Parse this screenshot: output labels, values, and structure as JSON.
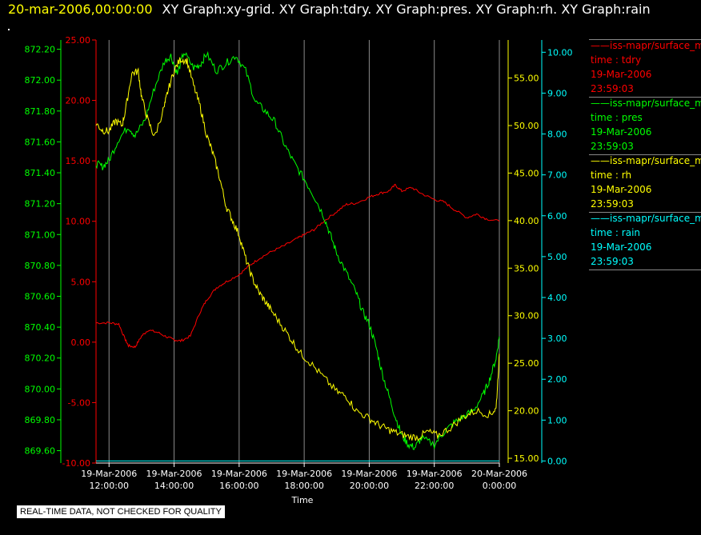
{
  "header": {
    "date": "20-mar-2006,00:00:00",
    "titles": "XY Graph:xy-grid.  XY Graph:tdry.  XY Graph:pres.  XY Graph:rh.  XY Graph:rain"
  },
  "footer": {
    "text": "REAL-TIME DATA, NOT CHECKED FOR QUALITY"
  },
  "legend": [
    {
      "line1": "——iss-mapr/surface_m",
      "line2": "time : tdry",
      "line3": "19-Mar-2006",
      "line4": "23:59:03",
      "color": "#ff0000"
    },
    {
      "line1": "——iss-mapr/surface_m",
      "line2": "time : pres",
      "line3": "19-Mar-2006",
      "line4": "23:59:03",
      "color": "#00ff00"
    },
    {
      "line1": "——iss-mapr/surface_m",
      "line2": "time : rh",
      "line3": "19-Mar-2006",
      "line4": "23:59:03",
      "color": "#ffff00"
    },
    {
      "line1": "——iss-mapr/surface_m",
      "line2": "time : rain",
      "line3": "19-Mar-2006",
      "line4": "23:59:03",
      "color": "#00ffff"
    }
  ],
  "chart_data": {
    "type": "line",
    "xlabel": "Time",
    "x_range_hours": [
      11.6,
      24.0
    ],
    "x_ticks": [
      {
        "h": 12,
        "d": "19-Mar-2006",
        "t": "12:00:00"
      },
      {
        "h": 14,
        "d": "19-Mar-2006",
        "t": "14:00:00"
      },
      {
        "h": 16,
        "d": "19-Mar-2006",
        "t": "16:00:00"
      },
      {
        "h": 18,
        "d": "19-Mar-2006",
        "t": "18:00:00"
      },
      {
        "h": 20,
        "d": "19-Mar-2006",
        "t": "20:00:00"
      },
      {
        "h": 22,
        "d": "19-Mar-2006",
        "t": "22:00:00"
      },
      {
        "h": 24,
        "d": "20-Mar-2006",
        "t": "0:00:00"
      }
    ],
    "grid": "vertical",
    "axes": {
      "pres": {
        "color": "#00ff00",
        "side": "left-outer",
        "ylim": [
          869.52,
          872.26
        ],
        "ticks": [
          "869.60",
          "869.80",
          "870.00",
          "870.20",
          "870.40",
          "870.60",
          "870.80",
          "871.00",
          "871.20",
          "871.40",
          "871.60",
          "871.80",
          "872.00",
          "872.20"
        ]
      },
      "tdry": {
        "color": "#ff0000",
        "side": "left-inner",
        "ylim": [
          -10,
          25
        ],
        "ticks": [
          "-10.00",
          "-5.00",
          "0.00",
          "5.00",
          "10.00",
          "15.00",
          "20.00",
          "25.00"
        ]
      },
      "rh": {
        "color": "#ffff00",
        "side": "right-inner",
        "ylim": [
          14.5,
          59
        ],
        "ticks": [
          "15.00",
          "20.00",
          "25.00",
          "30.00",
          "35.00",
          "40.00",
          "45.00",
          "50.00",
          "55.00"
        ]
      },
      "rain": {
        "color": "#00ffff",
        "side": "right-outer",
        "ylim": [
          -0.05,
          10.3
        ],
        "ticks": [
          "0.00",
          "1.00",
          "2.00",
          "3.00",
          "4.00",
          "5.00",
          "6.00",
          "7.00",
          "8.00",
          "9.00",
          "10.00"
        ]
      }
    },
    "series": [
      {
        "name": "tdry",
        "axis": "tdry",
        "color": "#ff0000",
        "x": [
          11.6,
          12.0,
          12.3,
          12.5,
          12.6,
          12.8,
          13.0,
          13.2,
          13.5,
          13.8,
          14.0,
          14.2,
          14.5,
          14.8,
          15.0,
          15.3,
          15.6,
          16.0,
          16.3,
          16.6,
          17.0,
          17.4,
          17.8,
          18.0,
          18.3,
          18.6,
          19.0,
          19.3,
          19.6,
          20.0,
          20.3,
          20.6,
          20.8,
          21.0,
          21.3,
          21.6,
          22.0,
          22.3,
          22.6,
          23.0,
          23.3,
          23.6,
          24.0
        ],
        "y": [
          1.6,
          1.6,
          1.5,
          0.2,
          -0.3,
          -0.4,
          0.5,
          1.0,
          0.8,
          0.4,
          0.2,
          0.1,
          0.5,
          2.5,
          3.5,
          4.5,
          5.0,
          5.6,
          6.3,
          6.9,
          7.5,
          8.0,
          8.6,
          8.9,
          9.3,
          10.0,
          10.8,
          11.4,
          11.5,
          12.0,
          12.3,
          12.5,
          13.0,
          12.5,
          12.8,
          12.3,
          11.8,
          11.6,
          11.0,
          10.3,
          10.6,
          10.2,
          10.0
        ]
      },
      {
        "name": "pres",
        "axis": "pres",
        "color": "#00ff00",
        "x": [
          11.6,
          11.8,
          12.0,
          12.3,
          12.6,
          12.8,
          13.1,
          13.4,
          13.7,
          13.9,
          14.1,
          14.3,
          14.6,
          14.8,
          15.0,
          15.3,
          15.6,
          15.9,
          16.2,
          16.5,
          16.8,
          17.1,
          17.4,
          17.7,
          18.0,
          18.3,
          18.6,
          18.8,
          19.0,
          19.3,
          19.6,
          19.8,
          20.0,
          20.2,
          20.4,
          20.6,
          20.8,
          21.0,
          21.2,
          21.4,
          21.6,
          22.0,
          22.3,
          22.6,
          22.9,
          23.2,
          23.5,
          23.7,
          23.9,
          24.0
        ],
        "y": [
          871.46,
          871.44,
          871.48,
          871.62,
          871.7,
          871.64,
          871.74,
          871.95,
          872.12,
          872.16,
          872.04,
          872.18,
          872.08,
          872.1,
          872.17,
          872.06,
          872.11,
          872.16,
          872.06,
          871.86,
          871.8,
          871.73,
          871.58,
          871.46,
          871.36,
          871.25,
          871.12,
          871.0,
          870.88,
          870.75,
          870.62,
          870.5,
          870.42,
          870.28,
          870.1,
          869.96,
          869.82,
          869.7,
          869.64,
          869.62,
          869.68,
          869.64,
          869.72,
          869.78,
          869.82,
          869.86,
          869.96,
          870.06,
          870.2,
          870.34
        ]
      },
      {
        "name": "rh",
        "axis": "rh",
        "color": "#ffff00",
        "x": [
          11.6,
          11.8,
          12.0,
          12.2,
          12.4,
          12.5,
          12.7,
          12.9,
          13.0,
          13.2,
          13.4,
          13.7,
          13.8,
          14.0,
          14.2,
          14.4,
          14.6,
          14.8,
          15.0,
          15.2,
          15.4,
          15.6,
          15.8,
          16.0,
          16.2,
          16.4,
          16.6,
          16.8,
          17.0,
          17.3,
          17.6,
          17.9,
          18.2,
          18.6,
          19.0,
          19.3,
          19.6,
          20.0,
          20.3,
          20.6,
          20.9,
          21.2,
          21.5,
          21.8,
          22.1,
          22.5,
          22.9,
          23.3,
          23.7,
          23.9,
          24.0
        ],
        "y": [
          50.2,
          49.5,
          49.4,
          50.5,
          50.0,
          51.5,
          55.5,
          55.7,
          53.0,
          50.5,
          48.8,
          52.0,
          53.5,
          55.8,
          57.0,
          56.8,
          54.2,
          52.0,
          49.0,
          47.0,
          44.5,
          41.5,
          40.0,
          38.5,
          36.0,
          34.0,
          32.5,
          31.5,
          30.5,
          29.0,
          27.5,
          26.0,
          25.0,
          23.5,
          22.0,
          21.5,
          20.0,
          19.2,
          18.5,
          18.0,
          17.6,
          17.3,
          17.2,
          17.8,
          17.4,
          18.2,
          19.4,
          20.0,
          19.6,
          20.2,
          26.0
        ]
      },
      {
        "name": "rain",
        "axis": "rain",
        "color": "#00ffff",
        "x": [
          11.6,
          24.0
        ],
        "y": [
          0.0,
          0.0
        ]
      }
    ]
  }
}
